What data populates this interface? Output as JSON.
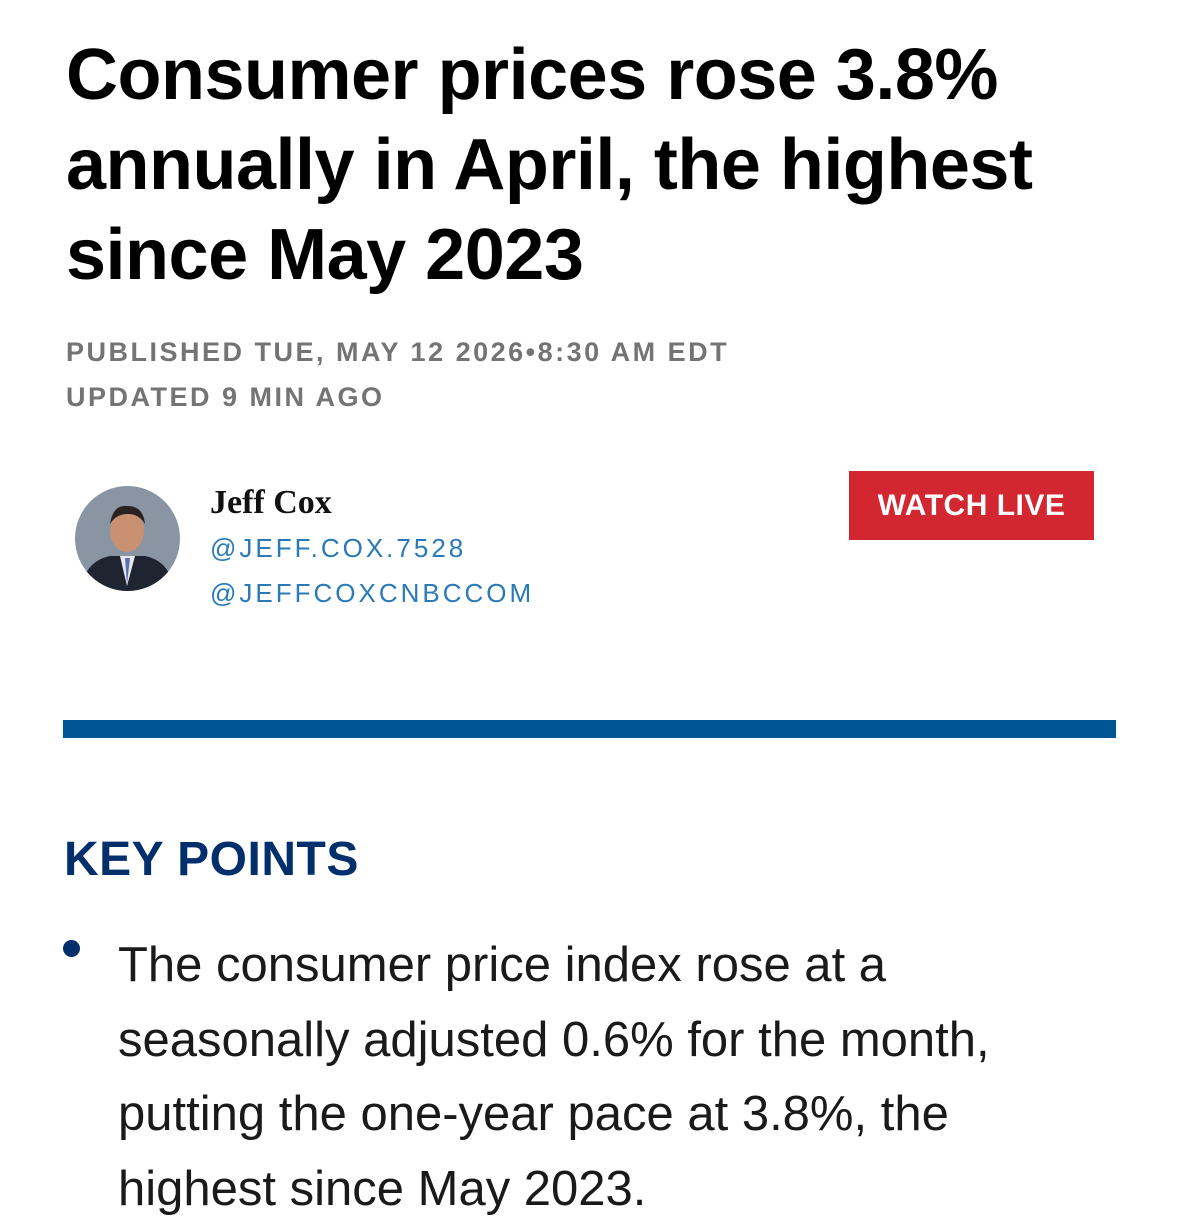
{
  "header": {
    "title": "Consumer prices rose 3.8% annually in April, the highest since May 2023",
    "published": "PUBLISHED TUE, MAY 12 2026•8:30 AM EDT",
    "updated": "UPDATED 9 MIN AGO"
  },
  "author": {
    "name": "Jeff Cox",
    "handles": [
      "@JEFF.COX.7528",
      "@JEFFCOXCNBCCOM"
    ]
  },
  "button": {
    "label": "WATCH LIVE"
  },
  "key_points": {
    "heading": "KEY POINTS",
    "items": [
      "The consumer price index rose at a seasonally adjusted 0.6% for the month, putting the one-year pace at 3.8%, the highest since May 2023."
    ]
  }
}
